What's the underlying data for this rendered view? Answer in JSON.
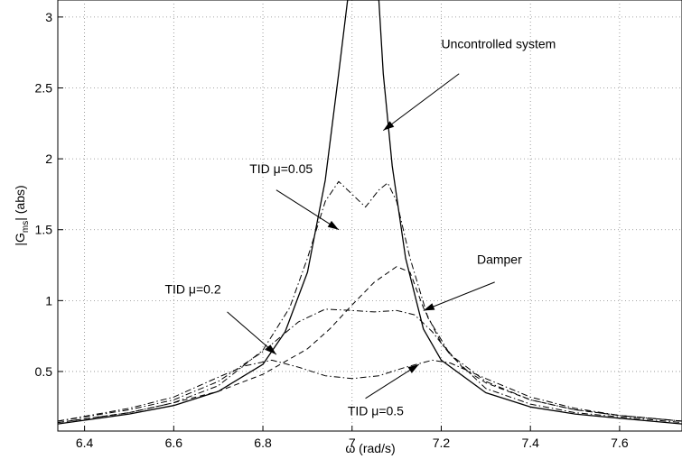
{
  "chart_data": {
    "type": "line",
    "xlabel": "ω  (rad/s)",
    "ylabel": "|G",
    "ylabel_sub": "ms",
    "ylabel_rest": "| (abs)",
    "xlim": [
      6.34,
      7.74
    ],
    "ylim": [
      0.08,
      3.12
    ],
    "x_ticks": [
      6.4,
      6.6,
      6.8,
      7.0,
      7.2,
      7.4,
      7.6
    ],
    "x_tick_labels": [
      "6.4",
      "6.6",
      "6.8",
      "7",
      "7.2",
      "7.4",
      "7.6"
    ],
    "y_ticks": [
      0.5,
      1.0,
      1.5,
      2.0,
      2.5,
      3.0
    ],
    "y_tick_labels": [
      "0.5",
      "1",
      "1.5",
      "2",
      "2.5",
      "3"
    ],
    "grid": true,
    "series": [
      {
        "name": "Uncontrolled system",
        "style": "solid",
        "x": [
          6.34,
          6.5,
          6.6,
          6.7,
          6.8,
          6.85,
          6.9,
          6.94,
          6.97,
          6.99,
          7.0,
          7.06,
          7.07,
          7.09,
          7.12,
          7.16,
          7.2,
          7.3,
          7.4,
          7.5,
          7.6,
          7.74
        ],
        "y": [
          0.13,
          0.2,
          0.26,
          0.36,
          0.55,
          0.78,
          1.2,
          1.85,
          2.6,
          3.12,
          3.12,
          3.12,
          2.6,
          1.95,
          1.3,
          0.8,
          0.58,
          0.35,
          0.25,
          0.2,
          0.17,
          0.13
        ]
      },
      {
        "name": "TID μ=0.05",
        "style": "dashdot",
        "x": [
          6.34,
          6.5,
          6.6,
          6.7,
          6.8,
          6.86,
          6.9,
          6.94,
          6.97,
          7.0,
          7.03,
          7.06,
          7.08,
          7.1,
          7.13,
          7.17,
          7.22,
          7.3,
          7.4,
          7.5,
          7.6,
          7.74
        ],
        "y": [
          0.14,
          0.21,
          0.28,
          0.4,
          0.65,
          0.95,
          1.3,
          1.7,
          1.84,
          1.75,
          1.66,
          1.78,
          1.83,
          1.7,
          1.3,
          0.88,
          0.62,
          0.38,
          0.27,
          0.21,
          0.18,
          0.14
        ]
      },
      {
        "name": "Damper",
        "style": "dashed",
        "x": [
          6.34,
          6.5,
          6.6,
          6.7,
          6.8,
          6.9,
          6.95,
          7.0,
          7.05,
          7.1,
          7.13,
          7.16,
          7.2,
          7.25,
          7.3,
          7.4,
          7.5,
          7.6,
          7.74
        ],
        "y": [
          0.14,
          0.21,
          0.28,
          0.36,
          0.48,
          0.66,
          0.8,
          0.97,
          1.13,
          1.24,
          1.2,
          0.95,
          0.7,
          0.52,
          0.42,
          0.3,
          0.23,
          0.19,
          0.15
        ]
      },
      {
        "name": "TID μ=0.2",
        "style": "dashdot",
        "x": [
          6.34,
          6.5,
          6.6,
          6.7,
          6.8,
          6.88,
          6.94,
          7.0,
          7.05,
          7.1,
          7.14,
          7.18,
          7.22,
          7.3,
          7.4,
          7.5,
          7.6,
          7.74
        ],
        "y": [
          0.15,
          0.23,
          0.3,
          0.43,
          0.64,
          0.85,
          0.94,
          0.93,
          0.92,
          0.93,
          0.9,
          0.78,
          0.62,
          0.43,
          0.3,
          0.23,
          0.19,
          0.15
        ]
      },
      {
        "name": "TID μ=0.5",
        "style": "dashdot",
        "x": [
          6.34,
          6.5,
          6.6,
          6.7,
          6.76,
          6.82,
          6.88,
          6.94,
          7.0,
          7.06,
          7.12,
          7.18,
          7.22,
          7.3,
          7.4,
          7.5,
          7.6,
          7.74
        ],
        "y": [
          0.15,
          0.24,
          0.32,
          0.46,
          0.54,
          0.58,
          0.53,
          0.47,
          0.45,
          0.47,
          0.53,
          0.58,
          0.56,
          0.45,
          0.32,
          0.24,
          0.19,
          0.15
        ]
      }
    ],
    "annotations": [
      {
        "text": "Uncontrolled system",
        "target": "Uncontrolled system",
        "text_at": [
          7.2,
          2.78
        ],
        "arrow_from": [
          7.24,
          2.6
        ],
        "arrow_to": [
          7.07,
          2.2
        ]
      },
      {
        "text": "TID μ=0.05",
        "target": "TID μ=0.05",
        "text_at": [
          6.77,
          1.9
        ],
        "arrow_from": [
          6.83,
          1.78
        ],
        "arrow_to": [
          6.97,
          1.5
        ]
      },
      {
        "text": "Damper",
        "target": "Damper",
        "text_at": [
          7.28,
          1.26
        ],
        "arrow_from": [
          7.32,
          1.13
        ],
        "arrow_to": [
          7.16,
          0.93
        ]
      },
      {
        "text": "TID μ=0.2",
        "target": "TID μ=0.2",
        "text_at": [
          6.58,
          1.05
        ],
        "arrow_from": [
          6.72,
          0.92
        ],
        "arrow_to": [
          6.83,
          0.62
        ]
      },
      {
        "text": "TID μ=0.5",
        "target": "TID μ=0.5",
        "text_at": [
          6.99,
          0.19
        ],
        "arrow_from": [
          7.03,
          0.31
        ],
        "arrow_to": [
          7.15,
          0.55
        ]
      }
    ]
  }
}
